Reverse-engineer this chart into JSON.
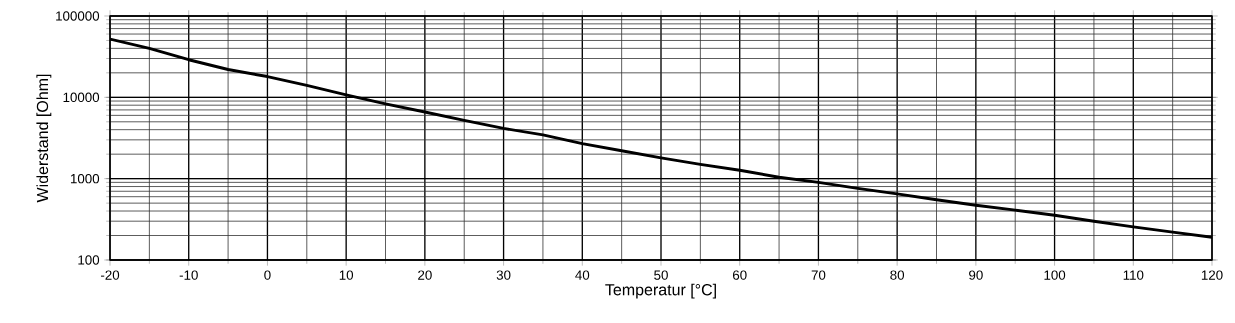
{
  "chart_data": {
    "type": "line",
    "xlabel": "Temperatur [°C]",
    "ylabel": "Widerstand [Ohm]",
    "x": [
      -20,
      -15,
      -10,
      -5,
      0,
      5,
      10,
      15,
      20,
      25,
      30,
      35,
      40,
      45,
      50,
      55,
      60,
      65,
      70,
      75,
      80,
      85,
      90,
      95,
      100,
      105,
      110,
      115,
      120
    ],
    "series": [
      {
        "color": "#000000",
        "values": [
          52000,
          40000,
          29000,
          22000,
          18000,
          14000,
          10700,
          8300,
          6600,
          5200,
          4150,
          3450,
          2700,
          2200,
          1800,
          1500,
          1270,
          1040,
          900,
          760,
          650,
          550,
          470,
          410,
          355,
          300,
          255,
          220,
          190
        ]
      }
    ],
    "log": "y",
    "xlim": [
      -20,
      120
    ],
    "ylim": [
      100,
      100000
    ],
    "xticks": [
      -20,
      -10,
      0,
      10,
      20,
      30,
      40,
      50,
      60,
      70,
      80,
      90,
      100,
      110,
      120
    ],
    "yticks": [
      100,
      1000,
      10000,
      100000
    ],
    "grid": true,
    "marker": "none",
    "line_style": "solid"
  }
}
